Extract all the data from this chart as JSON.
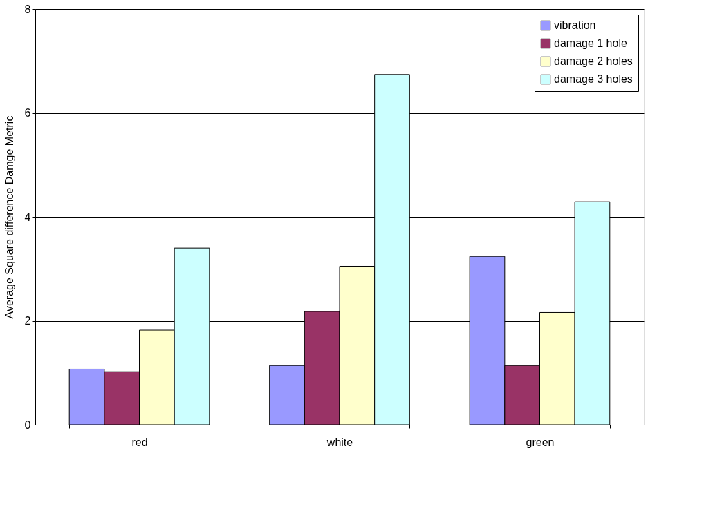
{
  "chart_data": {
    "type": "bar",
    "ylabel": "Average Square difference Damge Metric",
    "categories": [
      "red",
      "white",
      "green"
    ],
    "series": [
      {
        "name": "vibration",
        "color": "#9999ff",
        "values": [
          1.07,
          1.14,
          3.24
        ]
      },
      {
        "name": "damage 1 hole",
        "color": "#993366",
        "values": [
          1.02,
          2.18,
          1.14
        ]
      },
      {
        "name": "damage 2 holes",
        "color": "#ffffcc",
        "values": [
          1.82,
          3.05,
          2.16
        ]
      },
      {
        "name": "damage 3 holes",
        "color": "#ccffff",
        "values": [
          3.4,
          6.74,
          4.29
        ]
      }
    ],
    "ylim": [
      0,
      8
    ],
    "yticks": [
      0,
      2,
      4,
      6,
      8
    ],
    "grid": "y",
    "legend": "top right"
  }
}
